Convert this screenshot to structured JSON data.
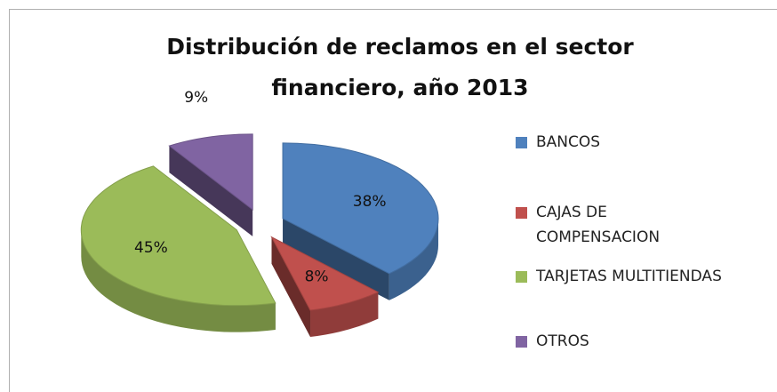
{
  "chart_data": {
    "type": "pie",
    "title": "Distribución de reclamos en el sector financiero, año 2013",
    "categories": [
      "BANCOS",
      "CAJAS DE COMPENSACION",
      "TARJETAS MULTITIENDAS",
      "OTROS"
    ],
    "values": [
      38,
      8,
      45,
      9
    ],
    "value_labels": [
      "38%",
      "8%",
      "45%",
      "9%"
    ],
    "colors": [
      "#4f81bd",
      "#c0504d",
      "#9bbb59",
      "#8064a2"
    ],
    "legend": "right"
  }
}
